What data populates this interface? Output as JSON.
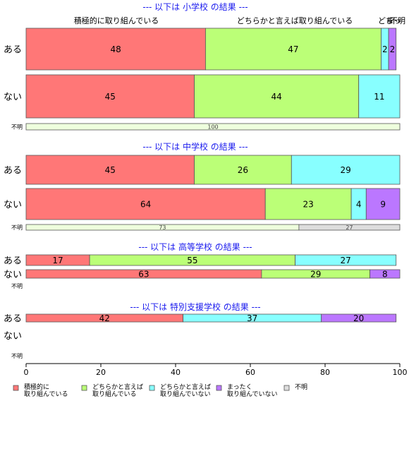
{
  "chart_data": {
    "type": "bar",
    "orientation": "horizontal",
    "stacked": true,
    "xlim": [
      0,
      100
    ],
    "xticks": [
      0,
      20,
      40,
      60,
      80,
      100
    ],
    "categories": [
      "積極的に取り組んでいる",
      "どちらかと言えば取り組んでいる",
      "どちらかと言えば取り組んでいない",
      "まったく取り組んでいない",
      "不明"
    ],
    "colors": [
      "#ff7777",
      "#bbff77",
      "#88ffff",
      "#bb77ff",
      "#dddddd"
    ],
    "legend": {
      "placement": "bottom",
      "items": [
        {
          "line1": "積極的に",
          "line2": "取り組んでいる"
        },
        {
          "line1": "どちらかと言えば",
          "line2": "取り組んでいる"
        },
        {
          "line1": "どちらかと言えば",
          "line2": "取り組んでいない"
        },
        {
          "line1": "まったく",
          "line2": "取り組んでいない"
        },
        {
          "line1": "不明",
          "line2": ""
        }
      ]
    },
    "header_labels": [
      "積極的に取り組んでいる",
      "どちらかと言えば取り組んでいる",
      "どち",
      "まっ",
      "不明"
    ],
    "sections": [
      {
        "title": "--- 以下は 小学校 の結果 ---",
        "rows": [
          {
            "label": "ある",
            "values": [
              48,
              47,
              2,
              2,
              0
            ]
          },
          {
            "label": "ない",
            "values": [
              45,
              44,
              11,
              0,
              0
            ]
          },
          {
            "label": "不明",
            "values": [
              0,
              100,
              0,
              0,
              0
            ]
          }
        ]
      },
      {
        "title": "--- 以下は 中学校 の結果 ---",
        "rows": [
          {
            "label": "ある",
            "values": [
              45,
              26,
              29,
              0,
              0
            ]
          },
          {
            "label": "ない",
            "values": [
              64,
              23,
              4,
              9,
              0
            ]
          },
          {
            "label": "不明",
            "values": [
              0,
              73,
              0,
              0,
              27
            ]
          }
        ]
      },
      {
        "title": "--- 以下は 高等学校 の結果 ---",
        "rows": [
          {
            "label": "ある",
            "values": [
              17,
              55,
              27,
              0,
              0
            ]
          },
          {
            "label": "ない",
            "values": [
              63,
              29,
              0,
              8,
              0
            ]
          },
          {
            "label": "不明",
            "values": [
              0,
              0,
              0,
              0,
              0
            ]
          }
        ]
      },
      {
        "title": "--- 以下は 特別支援学校 の結果 ---",
        "rows": [
          {
            "label": "ある",
            "values": [
              42,
              0,
              37,
              20,
              0
            ]
          },
          {
            "label": "ない",
            "values": [
              0,
              0,
              0,
              0,
              0
            ]
          },
          {
            "label": "不明",
            "values": [
              0,
              0,
              0,
              0,
              0
            ]
          }
        ]
      }
    ]
  }
}
